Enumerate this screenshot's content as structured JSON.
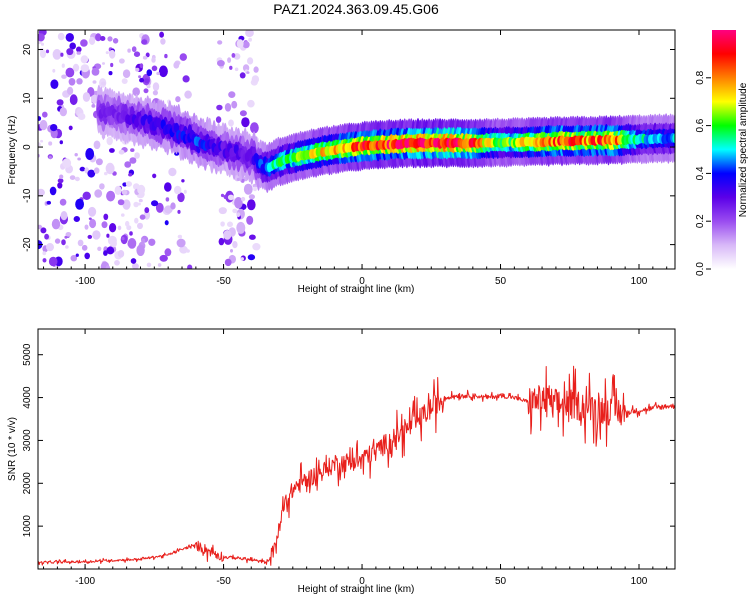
{
  "title": "PAZ1.2024.363.09.45.G06",
  "chart_data": [
    {
      "type": "heatmap",
      "xlabel": "Height of straight line (km)",
      "ylabel": "Frequency (Hz)",
      "xlim": [
        -117,
        113
      ],
      "ylim": [
        -25,
        24
      ],
      "xticks": [
        -100,
        -50,
        0,
        50,
        100
      ],
      "yticks": [
        -20,
        -10,
        0,
        10,
        20
      ],
      "colorbar": {
        "label": "Normalized spectral amplitude",
        "range": [
          0,
          1
        ],
        "ticks": [
          "0.0",
          "0.2",
          "0.4",
          "0.6",
          "0.8"
        ],
        "colormap": [
          "#ffffff",
          "#d8b8f8",
          "#9a4cf0",
          "#5b00e8",
          "#0000ff",
          "#00ffff",
          "#00ff00",
          "#ffff00",
          "#ff8000",
          "#ff0000",
          "#ff0080"
        ]
      },
      "ridge": {
        "x": [
          -90,
          -80,
          -70,
          -60,
          -50,
          -40,
          -35,
          -30,
          -20,
          -10,
          0,
          10,
          20,
          30,
          40,
          50,
          60,
          70,
          80,
          90,
          100,
          113
        ],
        "y": [
          7,
          5.5,
          4,
          1.5,
          -0.5,
          -2,
          -4.5,
          -3,
          -1.5,
          -0.5,
          0.2,
          0.6,
          0.8,
          0.8,
          0.8,
          0.9,
          1,
          1.2,
          1.3,
          1.4,
          1.6,
          1.8
        ],
        "amp": [
          0.25,
          0.3,
          0.35,
          0.4,
          0.3,
          0.3,
          0.45,
          0.55,
          0.65,
          0.75,
          0.85,
          0.9,
          0.95,
          0.95,
          0.85,
          0.6,
          0.7,
          0.85,
          0.8,
          0.85,
          0.5,
          0.45
        ]
      },
      "noise_regions": [
        {
          "x_range": [
            -117,
            -77
          ],
          "density": "high"
        },
        {
          "x_range": [
            -77,
            -62
          ],
          "density": "medium"
        },
        {
          "x_range": [
            -52,
            -38
          ],
          "density": "high"
        }
      ]
    },
    {
      "type": "line",
      "xlabel": "Height of straight line (km)",
      "ylabel": "SNR (10 * v/v)",
      "xlim": [
        -117,
        113
      ],
      "ylim": [
        0,
        5600
      ],
      "xticks": [
        -100,
        -50,
        0,
        50,
        100
      ],
      "yticks": [
        1000,
        2000,
        3000,
        4000,
        5000
      ],
      "series": [
        {
          "color": "#e8201c",
          "x": [
            -117,
            -110,
            -100,
            -90,
            -80,
            -70,
            -65,
            -60,
            -55,
            -50,
            -45,
            -40,
            -35,
            -33,
            -30,
            -28,
            -25,
            -20,
            -15,
            -10,
            -5,
            0,
            5,
            10,
            15,
            20,
            25,
            30,
            35,
            40,
            45,
            50,
            55,
            60,
            65,
            70,
            75,
            80,
            85,
            90,
            95,
            100,
            105,
            110,
            113
          ],
          "y": [
            150,
            160,
            170,
            200,
            230,
            330,
            460,
            560,
            420,
            280,
            260,
            210,
            160,
            250,
            900,
            1500,
            1850,
            2100,
            2250,
            2450,
            2500,
            2550,
            2750,
            3000,
            3200,
            3450,
            3750,
            4000,
            4050,
            4050,
            4000,
            4050,
            4000,
            3900,
            3950,
            3850,
            3850,
            3800,
            3750,
            3700,
            3650,
            3700,
            3750,
            3800,
            3800
          ]
        }
      ]
    }
  ]
}
